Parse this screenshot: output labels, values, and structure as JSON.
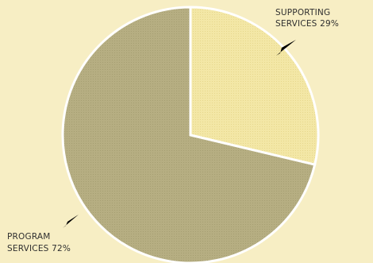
{
  "chart_data": {
    "type": "pie",
    "background_color": "#f7eec4",
    "edge_color": "#ffffff",
    "slices": [
      {
        "label_lines": [
          "SUPPORTING",
          "SERVICES 29%"
        ],
        "value": 29,
        "color": "#f3e7a6",
        "pattern_dot": "#e6d78c"
      },
      {
        "label_lines": [
          "PROGRAM",
          "SERVICES 72%"
        ],
        "value": 72,
        "color": "#b6ae82",
        "pattern_dot": "#a69f72"
      }
    ]
  }
}
